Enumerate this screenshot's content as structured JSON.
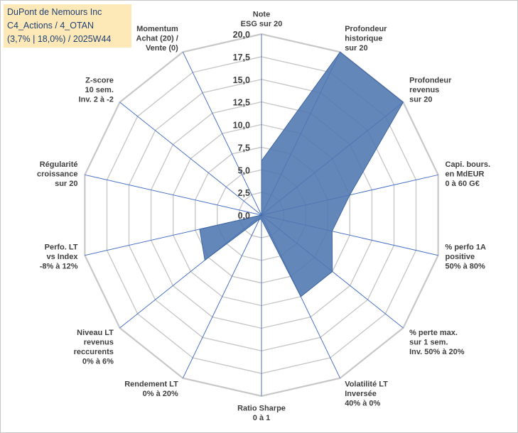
{
  "title_box": {
    "line1": "DuPont de Nemours Inc",
    "line2": "C4_Actions / 4_OTAN",
    "line3": "(3,7% | 18,0%) / 2025W44"
  },
  "chart_data": {
    "type": "radar",
    "title": "DuPont de Nemours Inc",
    "rmin": 0,
    "rmax": 20,
    "ticks": [
      "0,0",
      "2,5",
      "5,0",
      "7,5",
      "10,0",
      "12,5",
      "15,0",
      "17,5",
      "20,0"
    ],
    "axes": [
      {
        "label": [
          "Note",
          "ESG sur 20"
        ],
        "value": 6.0
      },
      {
        "label": [
          "Profondeur",
          "historique",
          "sur 20"
        ],
        "value": 20.0
      },
      {
        "label": [
          "Profondeur",
          "revenus",
          "sur 20"
        ],
        "value": 20.0
      },
      {
        "label": [
          "Capi. bours.",
          "en MdEUR",
          "0 à 60 G€"
        ],
        "value": 10.0
      },
      {
        "label": [
          "% perfo 1A",
          "positive",
          "50% à 80%"
        ],
        "value": 8.0
      },
      {
        "label": [
          "% perte max.",
          "sur 1 sem.",
          "Inv. 50% à 20%"
        ],
        "value": 10.0
      },
      {
        "label": [
          "Volatilité LT",
          "Inversée",
          "40% à 0%"
        ],
        "value": 10.0
      },
      {
        "label": [
          "Ratio Sharpe",
          "0 à 1"
        ],
        "value": 0.5
      },
      {
        "label": [
          "Rendement LT",
          "0% à 20%"
        ],
        "value": 0.5
      },
      {
        "label": [
          "Niveau LT",
          "revenus",
          "reccurents",
          "0% à 6%"
        ],
        "value": 8.0
      },
      {
        "label": [
          "Perfo. LT",
          "vs Index",
          "-8% à 12%"
        ],
        "value": 7.0
      },
      {
        "label": [
          "Régularité",
          "croissance",
          "sur 20"
        ],
        "value": 0.0
      },
      {
        "label": [
          "Z-score",
          "10 sem.",
          "Inv. 2 à -2"
        ],
        "value": 0.0
      },
      {
        "label": [
          "Momentum",
          "Achat (20) /",
          "Vente (0)"
        ],
        "value": 0.0
      }
    ],
    "series": [
      {
        "name": "DuPont de Nemours Inc",
        "fill": "#4f76b0",
        "stroke": "#3f66a3"
      }
    ],
    "grid_color": "#c8c8c8",
    "spoke_color": "#4a72c4"
  }
}
